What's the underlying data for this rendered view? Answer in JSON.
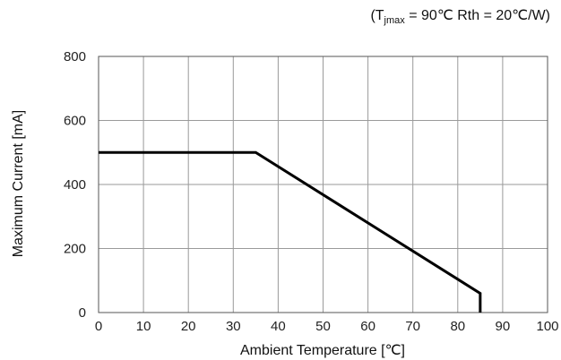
{
  "chart_data": {
    "type": "line",
    "title": "",
    "annotation": {
      "prefix": "(T",
      "subscript": "jmax",
      "rest": " = 90℃ Rth = 20℃/W)"
    },
    "xlabel": "Ambient Temperature [℃]",
    "ylabel": "Maximum Current [mA]",
    "xlim": [
      0,
      100
    ],
    "ylim": [
      0,
      800
    ],
    "xticks": [
      0,
      10,
      20,
      30,
      40,
      50,
      60,
      70,
      80,
      90,
      100
    ],
    "yticks": [
      0,
      200,
      400,
      600,
      800
    ],
    "grid": true,
    "series": [
      {
        "x": [
          0,
          35,
          85,
          85
        ],
        "y": [
          500,
          500,
          60,
          0
        ],
        "color": "#000000"
      }
    ]
  }
}
